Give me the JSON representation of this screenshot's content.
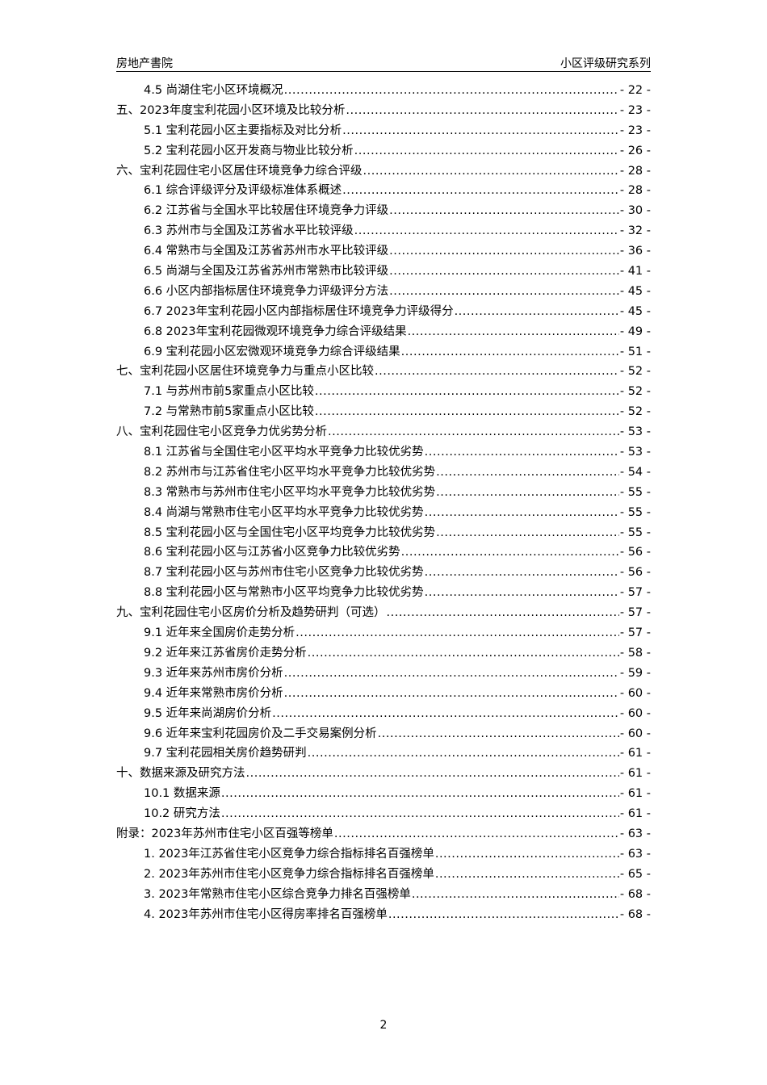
{
  "header": {
    "left": "房地产書院",
    "right": "小区评级研究系列"
  },
  "toc": [
    {
      "level": 2,
      "title": "4.5 尚湖住宅小区环境概况",
      "page": "- 22 -"
    },
    {
      "level": 1,
      "title": "五、2023年度宝利花园小区环境及比较分析",
      "page": "- 23 -"
    },
    {
      "level": 2,
      "title": "5.1 宝利花园小区主要指标及对比分析",
      "page": "- 23 -"
    },
    {
      "level": 2,
      "title": "5.2 宝利花园小区开发商与物业比较分析",
      "page": "- 26 -"
    },
    {
      "level": 1,
      "title": "六、宝利花园住宅小区居住环境竞争力综合评级",
      "page": "- 28 -"
    },
    {
      "level": 2,
      "title": "6.1 综合评级评分及评级标准体系概述",
      "page": "- 28 -"
    },
    {
      "level": 2,
      "title": "6.2 江苏省与全国水平比较居住环境竞争力评级",
      "page": "- 30 -"
    },
    {
      "level": 2,
      "title": "6.3 苏州市与全国及江苏省水平比较评级",
      "page": "- 32 -"
    },
    {
      "level": 2,
      "title": "6.4 常熟市与全国及江苏省苏州市水平比较评级",
      "page": "- 36 -"
    },
    {
      "level": 2,
      "title": "6.5 尚湖与全国及江苏省苏州市常熟市比较评级",
      "page": "- 41 -"
    },
    {
      "level": 2,
      "title": "6.6 小区内部指标居住环境竞争力评级评分方法",
      "page": "- 45 -"
    },
    {
      "level": 2,
      "title": "6.7 2023年宝利花园小区内部指标居住环境竞争力评级得分",
      "page": "- 45 -"
    },
    {
      "level": 2,
      "title": "6.8 2023年宝利花园微观环境竞争力综合评级结果",
      "page": "- 49 -"
    },
    {
      "level": 2,
      "title": "6.9 宝利花园小区宏微观环境竞争力综合评级结果",
      "page": "- 51 -"
    },
    {
      "level": 1,
      "title": "七、宝利花园小区居住环境竞争力与重点小区比较",
      "page": "- 52 -"
    },
    {
      "level": 2,
      "title": "7.1 与苏州市前5家重点小区比较",
      "page": "- 52 -"
    },
    {
      "level": 2,
      "title": "7.2 与常熟市前5家重点小区比较",
      "page": "- 52 -"
    },
    {
      "level": 1,
      "title": "八、宝利花园住宅小区竞争力优劣势分析",
      "page": "- 53 -"
    },
    {
      "level": 2,
      "title": "8.1 江苏省与全国住宅小区平均水平竞争力比较优劣势",
      "page": "- 53 -"
    },
    {
      "level": 2,
      "title": "8.2 苏州市与江苏省住宅小区平均水平竞争力比较优劣势",
      "page": "- 54 -"
    },
    {
      "level": 2,
      "title": "8.3 常熟市与苏州市住宅小区平均水平竞争力比较优劣势",
      "page": "- 55 -"
    },
    {
      "level": 2,
      "title": "8.4 尚湖与常熟市住宅小区平均水平竞争力比较优劣势",
      "page": "- 55 -"
    },
    {
      "level": 2,
      "title": "8.5 宝利花园小区与全国住宅小区平均竞争力比较优劣势",
      "page": "- 55 -"
    },
    {
      "level": 2,
      "title": "8.6 宝利花园小区与江苏省小区竞争力比较优劣势",
      "page": "- 56 -"
    },
    {
      "level": 2,
      "title": "8.7 宝利花园小区与苏州市住宅小区竞争力比较优劣势",
      "page": "- 56 -"
    },
    {
      "level": 2,
      "title": "8.8 宝利花园小区与常熟市小区平均竞争力比较优劣势",
      "page": "- 57 -"
    },
    {
      "level": 1,
      "title": "九、宝利花园住宅小区房价分析及趋势研判（可选）",
      "page": "- 57 -"
    },
    {
      "level": 2,
      "title": "9.1 近年来全国房价走势分析",
      "page": "- 57 -"
    },
    {
      "level": 2,
      "title": "9.2 近年来江苏省房价走势分析",
      "page": "- 58 -"
    },
    {
      "level": 2,
      "title": "9.3 近年来苏州市房价分析",
      "page": "- 59 -"
    },
    {
      "level": 2,
      "title": "9.4 近年来常熟市房价分析",
      "page": "- 60 -"
    },
    {
      "level": 2,
      "title": "9.5 近年来尚湖房价分析",
      "page": "- 60 -"
    },
    {
      "level": 2,
      "title": "9.6 近年来宝利花园房价及二手交易案例分析",
      "page": "- 60 -"
    },
    {
      "level": 2,
      "title": "9.7 宝利花园相关房价趋势研判",
      "page": "- 61 -"
    },
    {
      "level": 1,
      "title": "十、数据来源及研究方法",
      "page": "- 61 -"
    },
    {
      "level": 2,
      "title": "10.1 数据来源",
      "page": "- 61 -"
    },
    {
      "level": 2,
      "title": "10.2 研究方法",
      "page": "- 61 -"
    },
    {
      "level": 1,
      "title": "附录：2023年苏州市住宅小区百强等榜单",
      "page": "- 63 -"
    },
    {
      "level": 2,
      "title": "1. 2023年江苏省住宅小区竞争力综合指标排名百强榜单",
      "page": "- 63 -"
    },
    {
      "level": 2,
      "title": "2. 2023年苏州市住宅小区竞争力综合指标排名百强榜单",
      "page": "- 65 -"
    },
    {
      "level": 2,
      "title": "3. 2023年常熟市住宅小区综合竞争力排名百强榜单",
      "page": "- 68 -"
    },
    {
      "level": 2,
      "title": "4. 2023年苏州市住宅小区得房率排名百强榜单",
      "page": "- 68 -"
    }
  ],
  "page_number": "2"
}
